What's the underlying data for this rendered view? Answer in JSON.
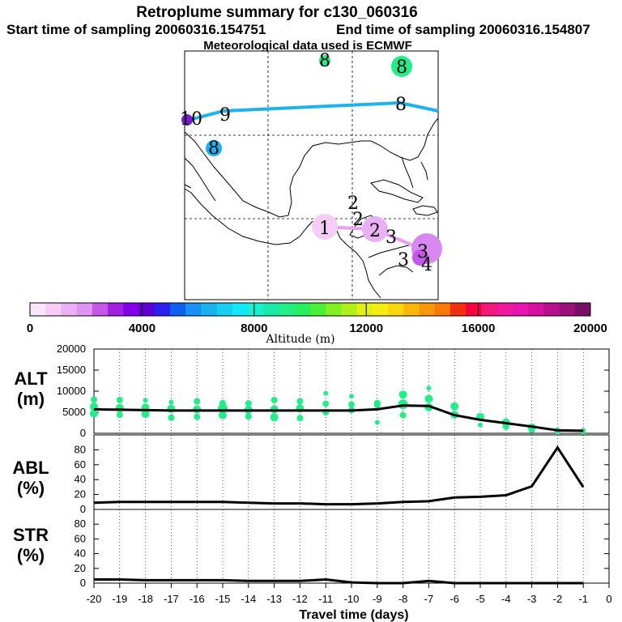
{
  "header": {
    "title": "Retroplume summary for c130_060316",
    "start_time": "Start time of sampling 20060316.154751",
    "end_time": "End time of sampling 20060316.154807",
    "met_data": "Meteorological data used is ECMWF"
  },
  "map": {
    "plume_labels": [
      "8",
      "8",
      "10",
      "9",
      "8",
      "8",
      "1",
      "2",
      "2",
      "2",
      "3",
      "3",
      "3",
      "4"
    ]
  },
  "colorbar": {
    "title": "Altitude (m)",
    "ticks": [
      "0",
      "4000",
      "8000",
      "12000",
      "16000",
      "20000"
    ],
    "colors": [
      "#fae6fb",
      "#f4ccf6",
      "#eab0f4",
      "#de94f0",
      "#c456e8",
      "#a21ee0",
      "#8400e8",
      "#5c00d4",
      "#2c20f0",
      "#1060f0",
      "#1a90f4",
      "#1ab2ef",
      "#16cff2",
      "#12e8f6",
      "#18f0d0",
      "#1aeaa8",
      "#22ee88",
      "#24f060",
      "#4af038",
      "#80f020",
      "#b0f018",
      "#e0f014",
      "#f4ee10",
      "#f8d80c",
      "#f8b808",
      "#f89808",
      "#f87808",
      "#f03010",
      "#f80040",
      "#f41878",
      "#f0189c",
      "#e814b0",
      "#d810a0",
      "#b8108c",
      "#981078",
      "#781068"
    ]
  },
  "colors": {
    "alt_dots": "#22ee88",
    "line": "#000000",
    "path_upper": "#1ab2ef",
    "path_lower": "#e8a0f0"
  },
  "panels": {
    "xlabel": "Travel time (days)",
    "xticks": [
      "-20",
      "-19",
      "-18",
      "-17",
      "-16",
      "-15",
      "-14",
      "-13",
      "-12",
      "-11",
      "-10",
      "-9",
      "-8",
      "-7",
      "-6",
      "-5",
      "-4",
      "-3",
      "-2",
      "-1",
      "0"
    ],
    "alt": {
      "label": "ALT",
      "unit": "(m)",
      "yticks": [
        "0",
        "5000",
        "10000",
        "15000",
        "20000"
      ]
    },
    "abl": {
      "label": "ABL",
      "unit": "(%)",
      "yticks": [
        "0",
        "20",
        "40",
        "60",
        "80"
      ]
    },
    "str": {
      "label": "STR",
      "unit": "(%)",
      "yticks": [
        "0",
        "20",
        "40",
        "60",
        "80"
      ]
    }
  },
  "chart_data": [
    {
      "type": "line",
      "title": "ALT",
      "ylabel": "(m)",
      "xlabel": "Travel time (days)",
      "xlim": [
        -20,
        0
      ],
      "ylim": [
        0,
        20000
      ],
      "x": [
        -20,
        -19,
        -18,
        -17,
        -16,
        -15,
        -14,
        -13,
        -12,
        -11,
        -10,
        -9,
        -8,
        -7,
        -6,
        -5,
        -4,
        -3,
        -2,
        -1
      ],
      "series": [
        {
          "name": "mean altitude",
          "values": [
            5700,
            5600,
            5500,
            5400,
            5400,
            5400,
            5400,
            5400,
            5400,
            5400,
            5400,
            5700,
            6600,
            6500,
            4300,
            3200,
            2400,
            1600,
            700,
            600
          ]
        },
        {
          "name": "plume altitude spread",
          "type": "scatter",
          "points": [
            [
              -20,
              8000,
              4
            ],
            [
              -20,
              6300,
              5
            ],
            [
              -20,
              4700,
              5
            ],
            [
              -19,
              7900,
              4
            ],
            [
              -19,
              6000,
              5
            ],
            [
              -19,
              4400,
              4
            ],
            [
              -18,
              7800,
              3
            ],
            [
              -18,
              6100,
              5
            ],
            [
              -18,
              4600,
              5
            ],
            [
              -17,
              7400,
              3
            ],
            [
              -17,
              5800,
              5
            ],
            [
              -17,
              3700,
              4
            ],
            [
              -16,
              7600,
              4
            ],
            [
              -16,
              5700,
              5
            ],
            [
              -16,
              3900,
              4
            ],
            [
              -15,
              7200,
              4
            ],
            [
              -15,
              5900,
              6
            ],
            [
              -15,
              4300,
              5
            ],
            [
              -14,
              7100,
              4
            ],
            [
              -14,
              5600,
              5
            ],
            [
              -14,
              4000,
              4
            ],
            [
              -13,
              7900,
              4
            ],
            [
              -13,
              5700,
              5
            ],
            [
              -13,
              3800,
              5
            ],
            [
              -12,
              7600,
              4
            ],
            [
              -12,
              5900,
              5
            ],
            [
              -12,
              3600,
              4
            ],
            [
              -11,
              9500,
              3
            ],
            [
              -11,
              7000,
              4
            ],
            [
              -11,
              5000,
              4
            ],
            [
              -10,
              8800,
              3
            ],
            [
              -10,
              6800,
              4
            ],
            [
              -10,
              5500,
              4
            ],
            [
              -9,
              7200,
              4
            ],
            [
              -9,
              6700,
              4
            ],
            [
              -9,
              2600,
              3
            ],
            [
              -8,
              9200,
              5
            ],
            [
              -8,
              6900,
              6
            ],
            [
              -8,
              4300,
              4
            ],
            [
              -7,
              10700,
              3
            ],
            [
              -7,
              8200,
              5
            ],
            [
              -7,
              6200,
              5
            ],
            [
              -6,
              6400,
              5
            ],
            [
              -6,
              4400,
              5
            ],
            [
              -5,
              3900,
              5
            ],
            [
              -5,
              2000,
              3
            ],
            [
              -4,
              2600,
              5
            ],
            [
              -4,
              1600,
              4
            ],
            [
              -3,
              1400,
              5
            ],
            [
              -3,
              800,
              4
            ],
            [
              -2,
              600,
              4
            ],
            [
              -1,
              700,
              3
            ],
            [
              -1,
              300,
              3
            ]
          ]
        }
      ]
    },
    {
      "type": "line",
      "title": "ABL",
      "ylabel": "(%)",
      "xlim": [
        -20,
        0
      ],
      "ylim": [
        0,
        100
      ],
      "x": [
        -20,
        -19,
        -18,
        -17,
        -16,
        -15,
        -14,
        -13,
        -12,
        -11,
        -10,
        -9,
        -8,
        -7,
        -6,
        -5,
        -4,
        -3,
        -2,
        -1
      ],
      "values": [
        9,
        10,
        10,
        10,
        10,
        10,
        9,
        8,
        8,
        7,
        7,
        8,
        10,
        11,
        16,
        17,
        19,
        31,
        83,
        30
      ]
    },
    {
      "type": "line",
      "title": "STR",
      "ylabel": "(%)",
      "xlim": [
        -20,
        0
      ],
      "ylim": [
        0,
        100
      ],
      "x": [
        -20,
        -19,
        -18,
        -17,
        -16,
        -15,
        -14,
        -13,
        -12,
        -11,
        -10,
        -9,
        -8,
        -7,
        -6,
        -5,
        -4,
        -3,
        -2,
        -1
      ],
      "values": [
        5,
        5,
        4,
        4,
        4,
        4,
        3,
        3,
        3,
        5,
        1,
        0,
        0,
        3,
        0,
        0,
        0,
        0,
        0,
        0
      ]
    }
  ]
}
